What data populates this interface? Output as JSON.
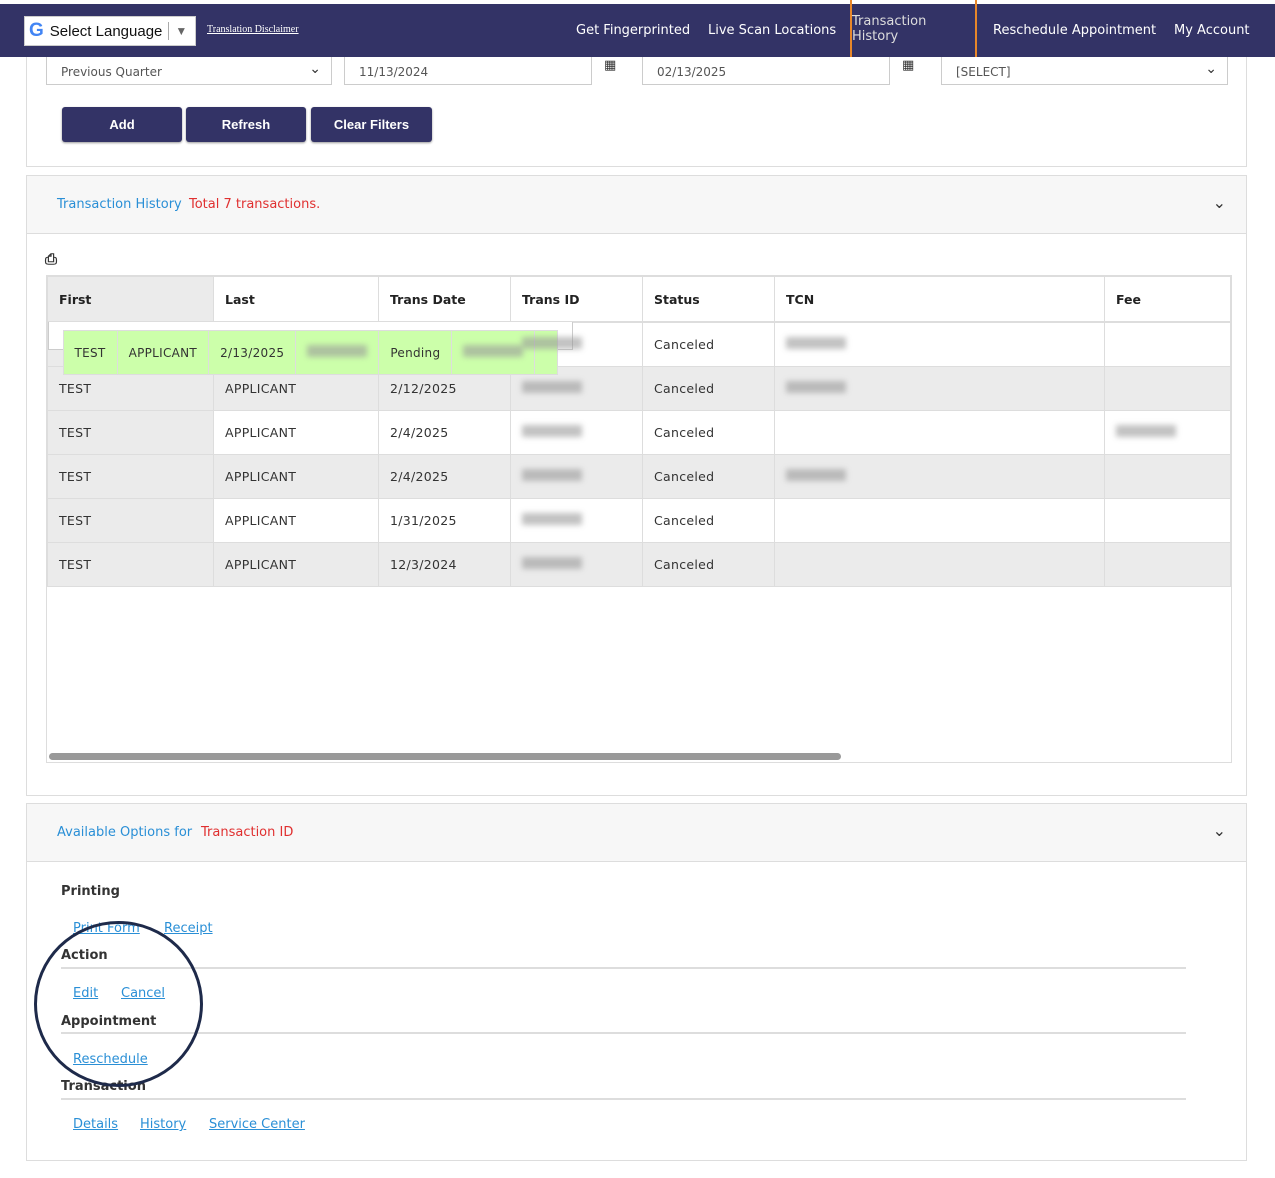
{
  "topbar": {
    "language_label": "Select Language",
    "translation_disclaimer": "Translation Disclaimer",
    "nav": [
      {
        "label": "Get Fingerprinted"
      },
      {
        "label": "Live Scan Locations"
      },
      {
        "label": "Transaction History",
        "active": true
      },
      {
        "label": "Reschedule Appointment"
      },
      {
        "label": "My Account"
      }
    ]
  },
  "filters": {
    "period": "Previous Quarter",
    "start_date": "11/13/2024",
    "end_date": "02/13/2025",
    "status_select": "[SELECT]"
  },
  "buttons": {
    "add": "Add",
    "refresh": "Refresh",
    "clear": "Clear Filters"
  },
  "history": {
    "title": "Transaction History",
    "total": "Total 7 transactions.",
    "columns": [
      "First",
      "Last",
      "Trans Date",
      "Trans ID",
      "Status",
      "TCN",
      "Fee"
    ],
    "rows": [
      {
        "first": "TEST",
        "last": "APPLICANT",
        "date": "2/13/2025",
        "status": "Pending"
      },
      {
        "first": "TEST",
        "last": "APPLICANT",
        "date": "2/12/2025",
        "status": "Canceled"
      },
      {
        "first": "TEST",
        "last": "APPLICANT",
        "date": "2/12/2025",
        "status": "Canceled"
      },
      {
        "first": "TEST",
        "last": "APPLICANT",
        "date": "2/4/2025",
        "status": "Canceled"
      },
      {
        "first": "TEST",
        "last": "APPLICANT",
        "date": "2/4/2025",
        "status": "Canceled"
      },
      {
        "first": "TEST",
        "last": "APPLICANT",
        "date": "1/31/2025",
        "status": "Canceled"
      },
      {
        "first": "TEST",
        "last": "APPLICANT",
        "date": "12/3/2024",
        "status": "Canceled"
      }
    ]
  },
  "options": {
    "title": "Available Options for",
    "transaction_label": "Transaction ID",
    "printing": "Printing",
    "print_form": "Print Form",
    "receipt": "Receipt",
    "action": "Action",
    "edit": "Edit",
    "cancel": "Cancel",
    "appointment": "Appointment",
    "reschedule": "Reschedule",
    "transaction": "Transaction",
    "details": "Details",
    "history": "History",
    "service_center": "Service Center"
  },
  "colors": {
    "navy": "#333366",
    "link": "#2a8fd6",
    "alert": "#e03030",
    "selected_row": "#ccffaa",
    "highlight": "#e8872a"
  }
}
